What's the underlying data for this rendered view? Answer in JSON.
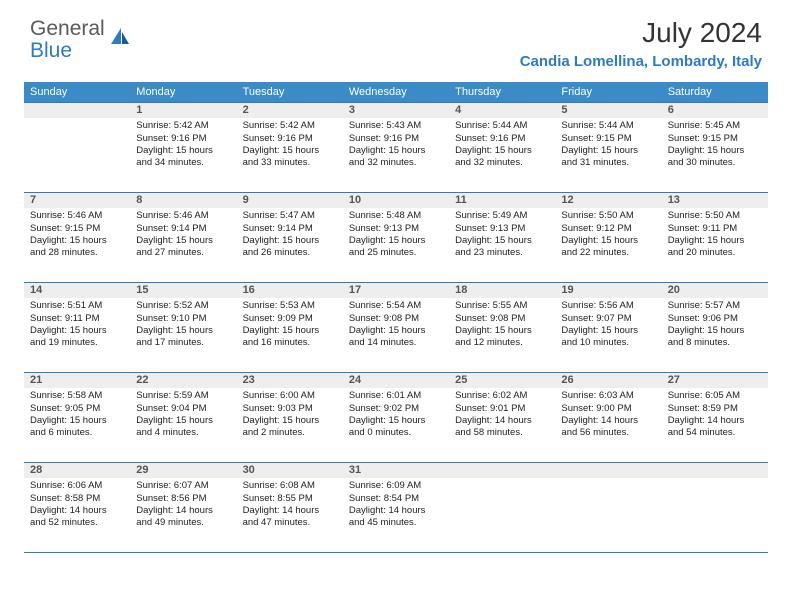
{
  "logo": {
    "part1": "General",
    "part2": "Blue"
  },
  "title": "July 2024",
  "location": "Candia Lomellina, Lombardy, Italy",
  "colors": {
    "headerBg": "#3b8bc9",
    "headerText": "#ffffff",
    "accent": "#2f7bbf",
    "dayBg": "#eeeeee",
    "textDark": "#333333",
    "textBody": "#222222"
  },
  "dayHeaders": [
    "Sunday",
    "Monday",
    "Tuesday",
    "Wednesday",
    "Thursday",
    "Friday",
    "Saturday"
  ],
  "weeks": [
    [
      null,
      {
        "n": "1",
        "sr": "Sunrise: 5:42 AM",
        "ss": "Sunset: 9:16 PM",
        "dl": "Daylight: 15 hours and 34 minutes."
      },
      {
        "n": "2",
        "sr": "Sunrise: 5:42 AM",
        "ss": "Sunset: 9:16 PM",
        "dl": "Daylight: 15 hours and 33 minutes."
      },
      {
        "n": "3",
        "sr": "Sunrise: 5:43 AM",
        "ss": "Sunset: 9:16 PM",
        "dl": "Daylight: 15 hours and 32 minutes."
      },
      {
        "n": "4",
        "sr": "Sunrise: 5:44 AM",
        "ss": "Sunset: 9:16 PM",
        "dl": "Daylight: 15 hours and 32 minutes."
      },
      {
        "n": "5",
        "sr": "Sunrise: 5:44 AM",
        "ss": "Sunset: 9:15 PM",
        "dl": "Daylight: 15 hours and 31 minutes."
      },
      {
        "n": "6",
        "sr": "Sunrise: 5:45 AM",
        "ss": "Sunset: 9:15 PM",
        "dl": "Daylight: 15 hours and 30 minutes."
      }
    ],
    [
      {
        "n": "7",
        "sr": "Sunrise: 5:46 AM",
        "ss": "Sunset: 9:15 PM",
        "dl": "Daylight: 15 hours and 28 minutes."
      },
      {
        "n": "8",
        "sr": "Sunrise: 5:46 AM",
        "ss": "Sunset: 9:14 PM",
        "dl": "Daylight: 15 hours and 27 minutes."
      },
      {
        "n": "9",
        "sr": "Sunrise: 5:47 AM",
        "ss": "Sunset: 9:14 PM",
        "dl": "Daylight: 15 hours and 26 minutes."
      },
      {
        "n": "10",
        "sr": "Sunrise: 5:48 AM",
        "ss": "Sunset: 9:13 PM",
        "dl": "Daylight: 15 hours and 25 minutes."
      },
      {
        "n": "11",
        "sr": "Sunrise: 5:49 AM",
        "ss": "Sunset: 9:13 PM",
        "dl": "Daylight: 15 hours and 23 minutes."
      },
      {
        "n": "12",
        "sr": "Sunrise: 5:50 AM",
        "ss": "Sunset: 9:12 PM",
        "dl": "Daylight: 15 hours and 22 minutes."
      },
      {
        "n": "13",
        "sr": "Sunrise: 5:50 AM",
        "ss": "Sunset: 9:11 PM",
        "dl": "Daylight: 15 hours and 20 minutes."
      }
    ],
    [
      {
        "n": "14",
        "sr": "Sunrise: 5:51 AM",
        "ss": "Sunset: 9:11 PM",
        "dl": "Daylight: 15 hours and 19 minutes."
      },
      {
        "n": "15",
        "sr": "Sunrise: 5:52 AM",
        "ss": "Sunset: 9:10 PM",
        "dl": "Daylight: 15 hours and 17 minutes."
      },
      {
        "n": "16",
        "sr": "Sunrise: 5:53 AM",
        "ss": "Sunset: 9:09 PM",
        "dl": "Daylight: 15 hours and 16 minutes."
      },
      {
        "n": "17",
        "sr": "Sunrise: 5:54 AM",
        "ss": "Sunset: 9:08 PM",
        "dl": "Daylight: 15 hours and 14 minutes."
      },
      {
        "n": "18",
        "sr": "Sunrise: 5:55 AM",
        "ss": "Sunset: 9:08 PM",
        "dl": "Daylight: 15 hours and 12 minutes."
      },
      {
        "n": "19",
        "sr": "Sunrise: 5:56 AM",
        "ss": "Sunset: 9:07 PM",
        "dl": "Daylight: 15 hours and 10 minutes."
      },
      {
        "n": "20",
        "sr": "Sunrise: 5:57 AM",
        "ss": "Sunset: 9:06 PM",
        "dl": "Daylight: 15 hours and 8 minutes."
      }
    ],
    [
      {
        "n": "21",
        "sr": "Sunrise: 5:58 AM",
        "ss": "Sunset: 9:05 PM",
        "dl": "Daylight: 15 hours and 6 minutes."
      },
      {
        "n": "22",
        "sr": "Sunrise: 5:59 AM",
        "ss": "Sunset: 9:04 PM",
        "dl": "Daylight: 15 hours and 4 minutes."
      },
      {
        "n": "23",
        "sr": "Sunrise: 6:00 AM",
        "ss": "Sunset: 9:03 PM",
        "dl": "Daylight: 15 hours and 2 minutes."
      },
      {
        "n": "24",
        "sr": "Sunrise: 6:01 AM",
        "ss": "Sunset: 9:02 PM",
        "dl": "Daylight: 15 hours and 0 minutes."
      },
      {
        "n": "25",
        "sr": "Sunrise: 6:02 AM",
        "ss": "Sunset: 9:01 PM",
        "dl": "Daylight: 14 hours and 58 minutes."
      },
      {
        "n": "26",
        "sr": "Sunrise: 6:03 AM",
        "ss": "Sunset: 9:00 PM",
        "dl": "Daylight: 14 hours and 56 minutes."
      },
      {
        "n": "27",
        "sr": "Sunrise: 6:05 AM",
        "ss": "Sunset: 8:59 PM",
        "dl": "Daylight: 14 hours and 54 minutes."
      }
    ],
    [
      {
        "n": "28",
        "sr": "Sunrise: 6:06 AM",
        "ss": "Sunset: 8:58 PM",
        "dl": "Daylight: 14 hours and 52 minutes."
      },
      {
        "n": "29",
        "sr": "Sunrise: 6:07 AM",
        "ss": "Sunset: 8:56 PM",
        "dl": "Daylight: 14 hours and 49 minutes."
      },
      {
        "n": "30",
        "sr": "Sunrise: 6:08 AM",
        "ss": "Sunset: 8:55 PM",
        "dl": "Daylight: 14 hours and 47 minutes."
      },
      {
        "n": "31",
        "sr": "Sunrise: 6:09 AM",
        "ss": "Sunset: 8:54 PM",
        "dl": "Daylight: 14 hours and 45 minutes."
      },
      null,
      null,
      null
    ]
  ]
}
